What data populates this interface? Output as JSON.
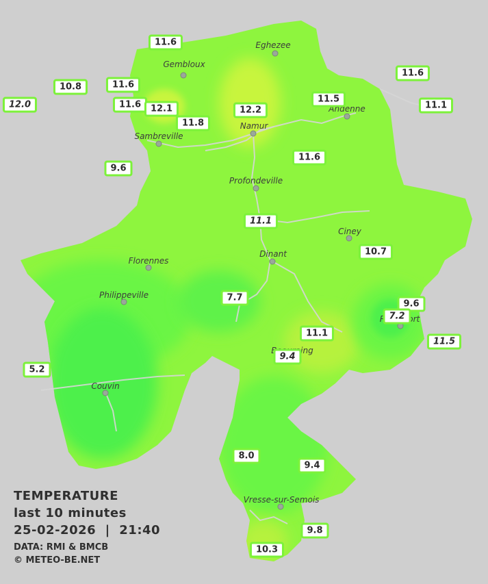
{
  "legend": {
    "title": "TEMPERATURE",
    "subtitle": "last 10 minutes",
    "datetime": "25-02-2026  |  21:40",
    "data_source": "DATA: RMI & BMCB",
    "copyright": "© METEO-BE.NET"
  },
  "colors": {
    "background": "#cfcfcf",
    "province_base": "#8ef53e",
    "warm_zone": "#c8f53c",
    "cool_zone": "#4ef04c",
    "station_border": "#7cf23a",
    "rivers": "#d9d9d9"
  },
  "cities": [
    {
      "id": "eghezee",
      "name": "Eghezee"
    },
    {
      "id": "gembloux",
      "name": "Gembloux"
    },
    {
      "id": "andenne",
      "name": "Andenne"
    },
    {
      "id": "namur",
      "name": "Namur"
    },
    {
      "id": "sambreville",
      "name": "Sambreville"
    },
    {
      "id": "profondeville",
      "name": "Profondeville"
    },
    {
      "id": "ciney",
      "name": "Ciney"
    },
    {
      "id": "dinant",
      "name": "Dinant"
    },
    {
      "id": "florennes",
      "name": "Florennes"
    },
    {
      "id": "philippeville",
      "name": "Philippeville"
    },
    {
      "id": "rochefort",
      "name": "Rochefort"
    },
    {
      "id": "beauraing",
      "name": "Beauraing"
    },
    {
      "id": "couvin",
      "name": "Couvin"
    },
    {
      "id": "vresse",
      "name": "Vresse-sur-Semois"
    }
  ],
  "stations": [
    {
      "id": "s1",
      "value": "11.6",
      "italic": false
    },
    {
      "id": "s2",
      "value": "12.0",
      "italic": true
    },
    {
      "id": "s3",
      "value": "10.8",
      "italic": false
    },
    {
      "id": "s4",
      "value": "11.6",
      "italic": false
    },
    {
      "id": "s5",
      "value": "11.6",
      "italic": false
    },
    {
      "id": "s6",
      "value": "12.1",
      "italic": false
    },
    {
      "id": "s7",
      "value": "11.8",
      "italic": false
    },
    {
      "id": "s8",
      "value": "12.2",
      "italic": false
    },
    {
      "id": "s9",
      "value": "11.5",
      "italic": false
    },
    {
      "id": "s10",
      "value": "11.6",
      "italic": false
    },
    {
      "id": "s11",
      "value": "11.1",
      "italic": false
    },
    {
      "id": "s12",
      "value": "9.6",
      "italic": false
    },
    {
      "id": "s13",
      "value": "11.6",
      "italic": false
    },
    {
      "id": "s14",
      "value": "11.1",
      "italic": true
    },
    {
      "id": "s15",
      "value": "10.7",
      "italic": false
    },
    {
      "id": "s16",
      "value": "7.7",
      "italic": false
    },
    {
      "id": "s17",
      "value": "9.6",
      "italic": false
    },
    {
      "id": "s18",
      "value": "7.2",
      "italic": true
    },
    {
      "id": "s19",
      "value": "11.1",
      "italic": false
    },
    {
      "id": "s20",
      "value": "11.5",
      "italic": true
    },
    {
      "id": "s21",
      "value": "9.4",
      "italic": true
    },
    {
      "id": "s22",
      "value": "5.2",
      "italic": false
    },
    {
      "id": "s23",
      "value": "8.0",
      "italic": false
    },
    {
      "id": "s24",
      "value": "9.4",
      "italic": false
    },
    {
      "id": "s25",
      "value": "9.8",
      "italic": false
    },
    {
      "id": "s26",
      "value": "10.3",
      "italic": false
    }
  ]
}
